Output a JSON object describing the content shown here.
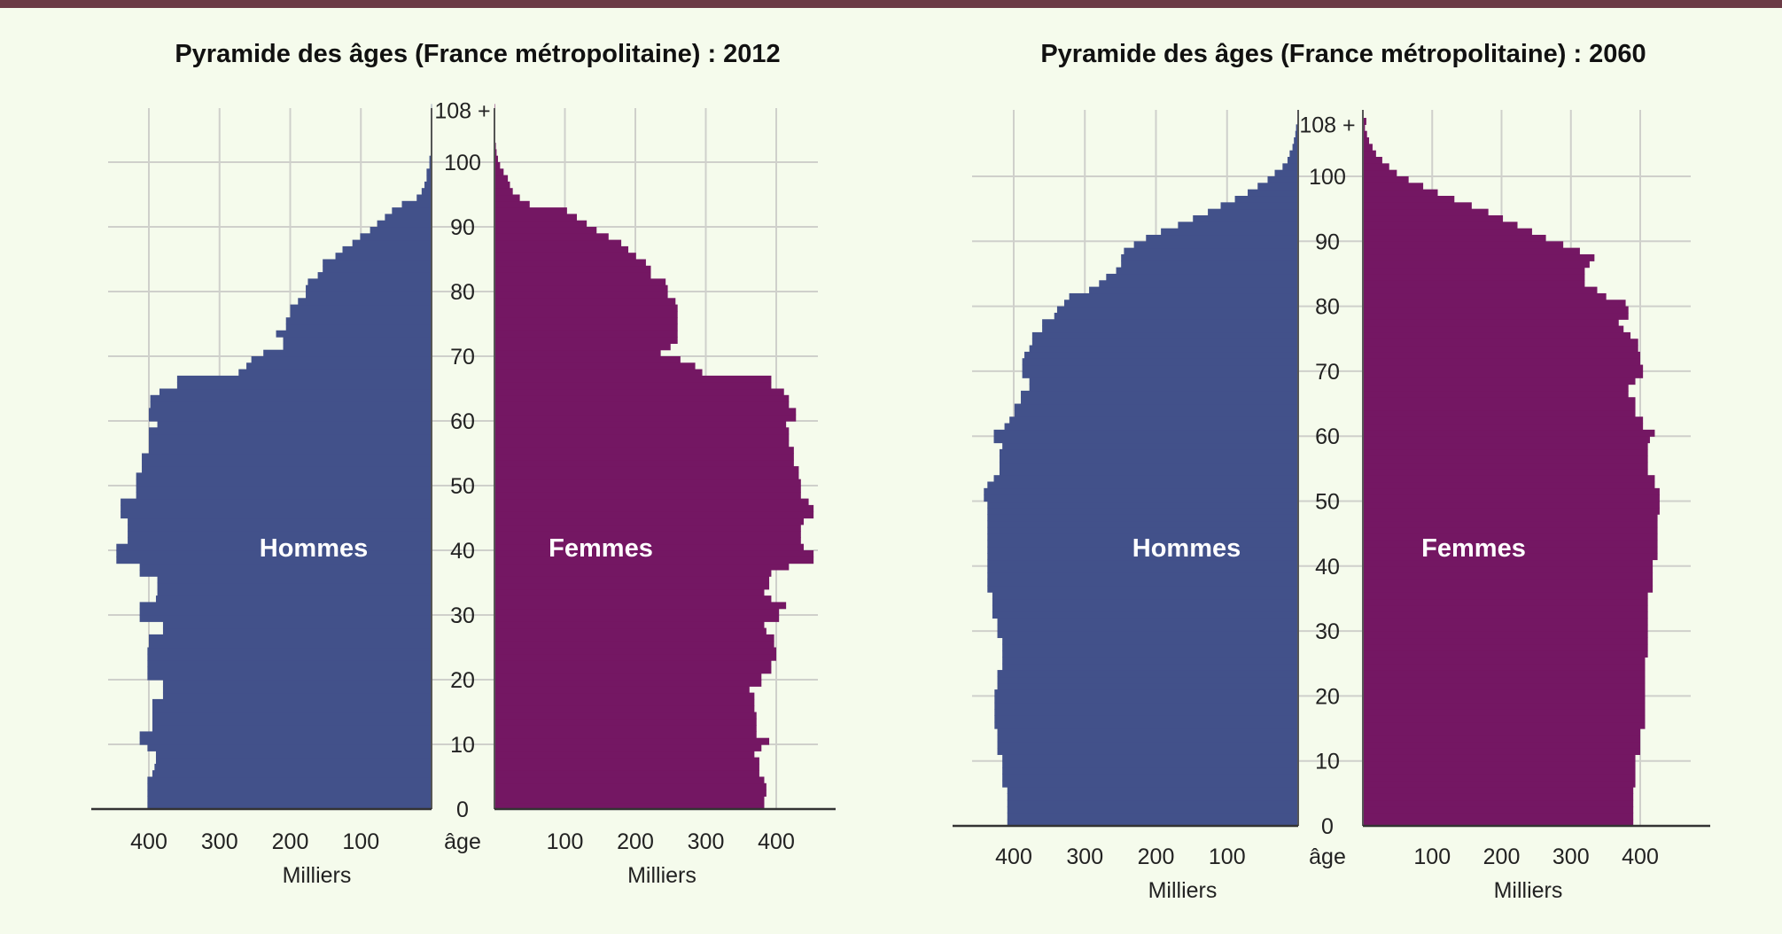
{
  "colors": {
    "hommes": "#42518a",
    "femmes": "#741763",
    "background": "#f5fbec",
    "grid": "#cfd0cb",
    "top_bar": "#6b3a45"
  },
  "chart_data": [
    {
      "type": "bar",
      "orientation": "horizontal-pyramid",
      "title": "Pyramide des âges (France métropolitaine) : 2012",
      "ylabel": "âge",
      "xlabel": "Milliers",
      "age_ticks": [
        "0",
        "10",
        "20",
        "30",
        "40",
        "50",
        "60",
        "70",
        "80",
        "90",
        "100",
        "108 +"
      ],
      "x_ticks_left": [
        "400",
        "300",
        "200",
        "100"
      ],
      "x_ticks_right": [
        "100",
        "200",
        "300",
        "400"
      ],
      "xlim": [
        0,
        470
      ],
      "ages": [
        0,
        108
      ],
      "grid": true,
      "series": [
        {
          "name": "Hommes",
          "side": "left",
          "values": [
            402,
            402,
            402,
            402,
            402,
            395,
            392,
            390,
            390,
            402,
            413,
            413,
            395,
            395,
            395,
            395,
            395,
            380,
            380,
            380,
            402,
            402,
            402,
            402,
            402,
            400,
            400,
            380,
            380,
            413,
            413,
            413,
            390,
            388,
            388,
            388,
            413,
            413,
            446,
            446,
            446,
            430,
            430,
            430,
            430,
            440,
            440,
            440,
            418,
            418,
            418,
            418,
            410,
            410,
            410,
            400,
            400,
            400,
            400,
            388,
            400,
            400,
            398,
            398,
            385,
            360,
            360,
            273,
            262,
            255,
            238,
            210,
            210,
            220,
            206,
            206,
            200,
            200,
            189,
            178,
            178,
            175,
            161,
            154,
            154,
            136,
            126,
            112,
            101,
            87,
            77,
            66,
            56,
            42,
            21,
            14,
            10,
            7,
            7,
            3,
            3,
            1,
            1,
            0.5,
            0.5,
            0.5,
            0.3,
            0.3,
            0.3
          ]
        },
        {
          "name": "Femmes",
          "side": "right",
          "values": [
            383,
            383,
            386,
            386,
            383,
            376,
            376,
            376,
            369,
            379,
            390,
            372,
            372,
            372,
            372,
            369,
            369,
            369,
            362,
            379,
            379,
            393,
            393,
            400,
            400,
            397,
            397,
            386,
            383,
            404,
            404,
            414,
            393,
            383,
            390,
            390,
            393,
            418,
            453,
            453,
            439,
            435,
            435,
            435,
            439,
            453,
            453,
            446,
            435,
            435,
            435,
            432,
            432,
            425,
            425,
            425,
            418,
            418,
            418,
            414,
            428,
            428,
            418,
            418,
            411,
            393,
            393,
            295,
            285,
            264,
            236,
            250,
            260,
            260,
            260,
            260,
            260,
            260,
            257,
            246,
            246,
            243,
            222,
            222,
            215,
            201,
            190,
            180,
            162,
            145,
            131,
            117,
            103,
            50,
            36,
            26,
            22,
            19,
            13,
            8,
            5,
            3,
            2,
            1,
            0.5,
            0.5,
            0.5,
            0.3,
            0.3
          ]
        }
      ]
    },
    {
      "type": "bar",
      "orientation": "horizontal-pyramid",
      "title": "Pyramide des âges (France métropolitaine) : 2060",
      "ylabel": "âge",
      "xlabel": "Milliers",
      "age_ticks": [
        "0",
        "10",
        "20",
        "30",
        "40",
        "50",
        "60",
        "70",
        "80",
        "90",
        "100",
        "108 +"
      ],
      "x_ticks_left": [
        "400",
        "300",
        "200",
        "100"
      ],
      "x_ticks_right": [
        "100",
        "200",
        "300",
        "400"
      ],
      "xlim": [
        0,
        470
      ],
      "ages": [
        0,
        108
      ],
      "grid": true,
      "series": [
        {
          "name": "Hommes",
          "side": "left",
          "values": [
            409,
            409,
            409,
            409,
            409,
            409,
            416,
            416,
            416,
            416,
            416,
            423,
            423,
            423,
            423,
            427,
            427,
            427,
            427,
            427,
            427,
            423,
            423,
            423,
            416,
            416,
            416,
            416,
            416,
            423,
            423,
            423,
            430,
            430,
            430,
            430,
            437,
            437,
            437,
            437,
            437,
            437,
            437,
            437,
            437,
            437,
            437,
            437,
            437,
            437,
            442,
            442,
            437,
            428,
            420,
            420,
            420,
            420,
            416,
            428,
            428,
            413,
            406,
            399,
            399,
            390,
            390,
            378,
            378,
            388,
            388,
            388,
            385,
            378,
            374,
            374,
            360,
            360,
            343,
            339,
            329,
            322,
            294,
            280,
            270,
            256,
            249,
            249,
            245,
            231,
            214,
            193,
            169,
            148,
            127,
            109,
            89,
            71,
            57,
            43,
            33,
            22,
            15,
            12,
            8,
            6,
            4,
            3,
            1
          ]
        },
        {
          "name": "Femmes",
          "side": "right",
          "values": [
            390,
            390,
            390,
            390,
            390,
            390,
            393,
            393,
            393,
            393,
            393,
            400,
            400,
            400,
            400,
            407,
            407,
            407,
            407,
            407,
            407,
            407,
            407,
            407,
            407,
            407,
            411,
            411,
            411,
            411,
            411,
            411,
            411,
            411,
            411,
            411,
            418,
            418,
            418,
            418,
            418,
            425,
            425,
            425,
            425,
            425,
            425,
            425,
            428,
            428,
            428,
            428,
            421,
            421,
            411,
            411,
            411,
            411,
            411,
            414,
            421,
            404,
            404,
            393,
            393,
            393,
            383,
            383,
            393,
            404,
            404,
            400,
            400,
            397,
            397,
            386,
            376,
            369,
            383,
            383,
            379,
            351,
            338,
            320,
            320,
            320,
            327,
            334,
            313,
            289,
            264,
            244,
            223,
            202,
            181,
            157,
            132,
            108,
            87,
            66,
            49,
            38,
            28,
            19,
            14,
            9,
            6,
            3,
            5
          ]
        }
      ]
    }
  ]
}
